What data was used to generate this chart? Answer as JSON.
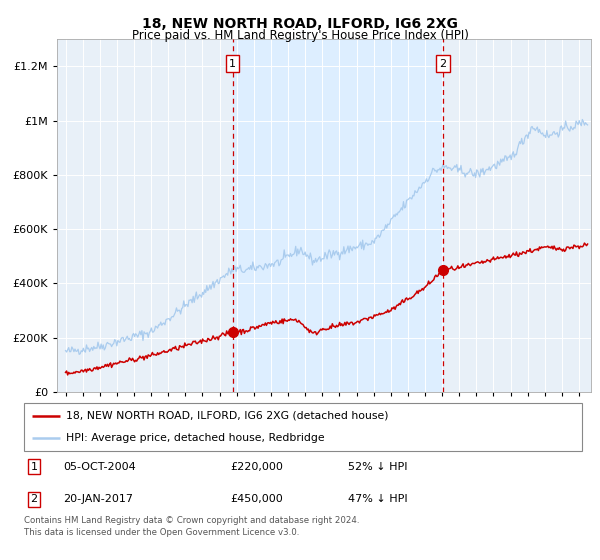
{
  "title": "18, NEW NORTH ROAD, ILFORD, IG6 2XG",
  "subtitle": "Price paid vs. HM Land Registry's House Price Index (HPI)",
  "hpi_label": "HPI: Average price, detached house, Redbridge",
  "property_label": "18, NEW NORTH ROAD, ILFORD, IG6 2XG (detached house)",
  "sale1_date_num": 2004.76,
  "sale1_price": 220000,
  "sale1_label": "05-OCT-2004",
  "sale1_pct": "52% ↓ HPI",
  "sale2_date_num": 2017.06,
  "sale2_price": 450000,
  "sale2_label": "20-JAN-2017",
  "sale2_pct": "47% ↓ HPI",
  "hpi_color": "#aaccee",
  "property_color": "#cc0000",
  "dot_color": "#cc0000",
  "shading_color": "#ddeeff",
  "dashed_line_color": "#cc0000",
  "plot_bg_color": "#e8f0f8",
  "footer_text": "Contains HM Land Registry data © Crown copyright and database right 2024.\nThis data is licensed under the Open Government Licence v3.0.",
  "ylim": [
    0,
    1300000
  ],
  "xlim_start": 1994.5,
  "xlim_end": 2025.7
}
